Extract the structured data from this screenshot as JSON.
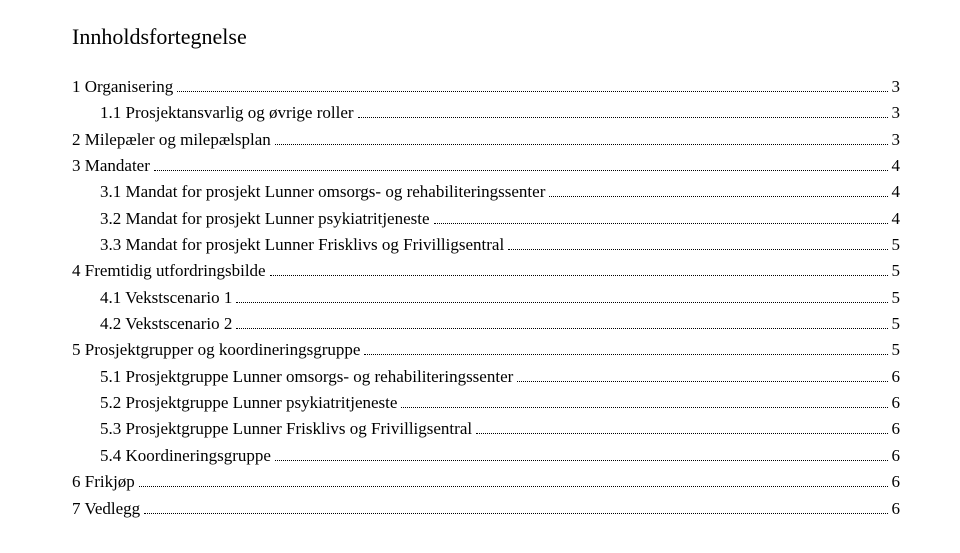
{
  "title": "Innholdsfortegnelse",
  "entries": [
    {
      "indent": 0,
      "label": "1 Organisering",
      "page": "3"
    },
    {
      "indent": 1,
      "label": "1.1 Prosjektansvarlig og øvrige roller",
      "page": "3"
    },
    {
      "indent": 0,
      "label": "2 Milepæler og milepælsplan",
      "page": "3"
    },
    {
      "indent": 0,
      "label": "3 Mandater",
      "page": "4"
    },
    {
      "indent": 1,
      "label": "3.1 Mandat for prosjekt Lunner omsorgs- og rehabiliteringssenter",
      "page": "4"
    },
    {
      "indent": 1,
      "label": "3.2 Mandat for prosjekt Lunner psykiatritjeneste",
      "page": "4"
    },
    {
      "indent": 1,
      "label": "3.3 Mandat for prosjekt Lunner Frisklivs og Frivilligsentral",
      "page": "5"
    },
    {
      "indent": 0,
      "label": "4 Fremtidig utfordringsbilde",
      "page": "5"
    },
    {
      "indent": 1,
      "label": "4.1 Vekstscenario 1",
      "page": "5"
    },
    {
      "indent": 1,
      "label": "4.2 Vekstscenario 2",
      "page": "5"
    },
    {
      "indent": 0,
      "label": "5 Prosjektgrupper og koordineringsgruppe",
      "page": "5"
    },
    {
      "indent": 1,
      "label": "5.1 Prosjektgruppe Lunner omsorgs- og rehabiliteringssenter",
      "page": "6"
    },
    {
      "indent": 1,
      "label": "5.2 Prosjektgruppe Lunner psykiatritjeneste",
      "page": "6"
    },
    {
      "indent": 1,
      "label": "5.3 Prosjektgruppe Lunner Frisklivs og Frivilligsentral",
      "page": "6"
    },
    {
      "indent": 1,
      "label": "5.4 Koordineringsgruppe",
      "page": "6"
    },
    {
      "indent": 0,
      "label": "6 Frikjøp",
      "page": "6"
    },
    {
      "indent": 0,
      "label": "7 Vedlegg",
      "page": "6"
    }
  ]
}
